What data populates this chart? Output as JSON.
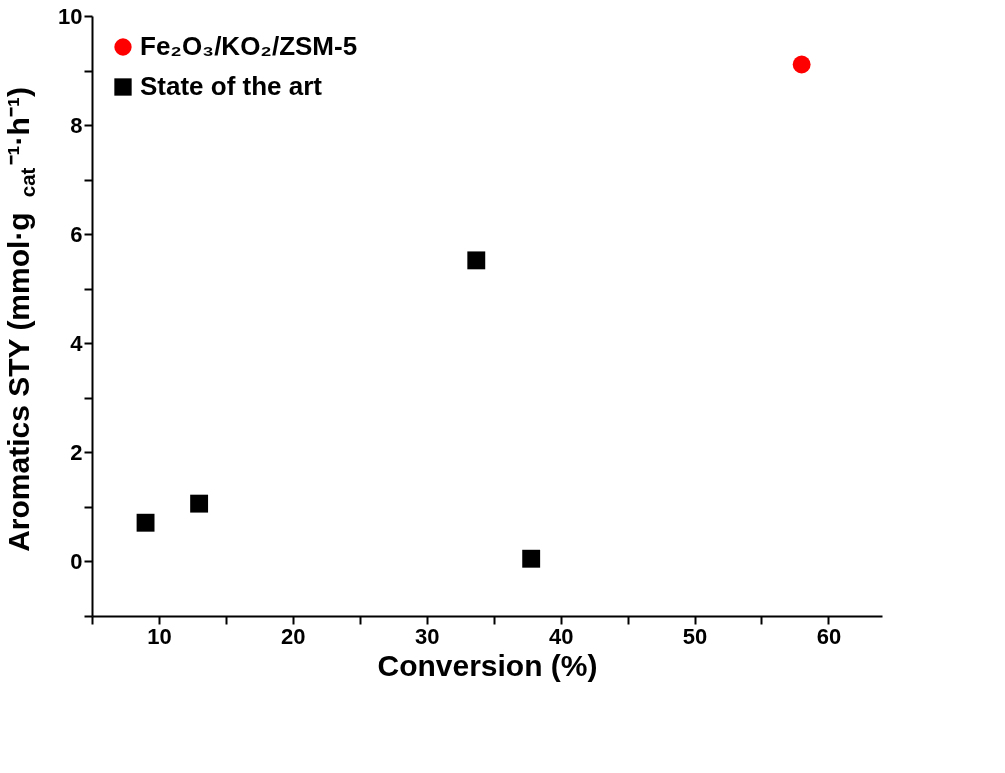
{
  "chart_data": {
    "type": "scatter",
    "xlabel": "Conversion (%)",
    "ylabel": "Aromatics STY (mmol·g$_{cat}$⁻¹·h⁻¹)",
    "xlim": [
      5,
      64
    ],
    "ylim": [
      -1,
      10
    ],
    "xticks": [
      {
        "value": 5,
        "label": null
      },
      10,
      {
        "value": 15,
        "label": null
      },
      20,
      {
        "value": 25,
        "label": null
      },
      30,
      {
        "value": 35,
        "label": null
      },
      40,
      {
        "value": 45,
        "label": null
      },
      50,
      {
        "value": 55,
        "label": null
      },
      60
    ],
    "yticks": [
      {
        "value": -1,
        "label": null
      },
      0,
      {
        "value": 1,
        "label": null
      },
      2,
      {
        "value": 3,
        "label": null
      },
      4,
      {
        "value": 5,
        "label": null
      },
      6,
      {
        "value": 7,
        "label": null
      },
      8,
      {
        "value": 9,
        "label": null
      },
      10
    ],
    "grid": false,
    "legend": "top left",
    "series": [
      {
        "name": "Fe₂O₃/KO₂/ZSM-5",
        "color": "#ff0000",
        "marker": "circle",
        "x": [
          58.0
        ],
        "values": [
          9.11
        ]
      },
      {
        "name": "State of the art",
        "color": "#000000",
        "marker": "square",
        "x": [
          9.0,
          13.0,
          33.7,
          37.8
        ],
        "values": [
          0.71,
          1.06,
          5.52,
          0.05
        ]
      }
    ]
  }
}
